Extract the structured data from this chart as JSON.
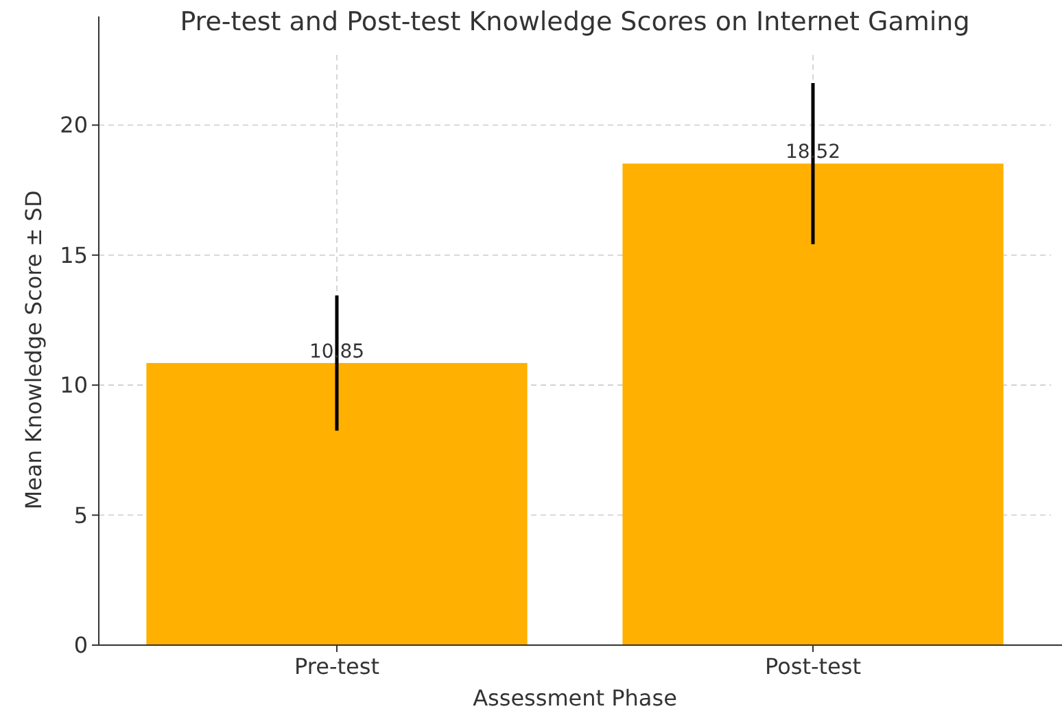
{
  "chart_data": {
    "type": "bar",
    "title": "Pre-test and Post-test Knowledge Scores on Internet Gaming",
    "xlabel": "Assessment Phase",
    "ylabel": "Mean Knowledge Score ± SD",
    "categories": [
      "Pre-test",
      "Post-test"
    ],
    "values": [
      10.85,
      18.52
    ],
    "errors": [
      2.6,
      3.1
    ],
    "color": "#ffb000",
    "data_labels": true,
    "ylim": [
      0,
      22.7
    ],
    "yticks": [
      0,
      5,
      10,
      15,
      20
    ],
    "grid": true
  }
}
